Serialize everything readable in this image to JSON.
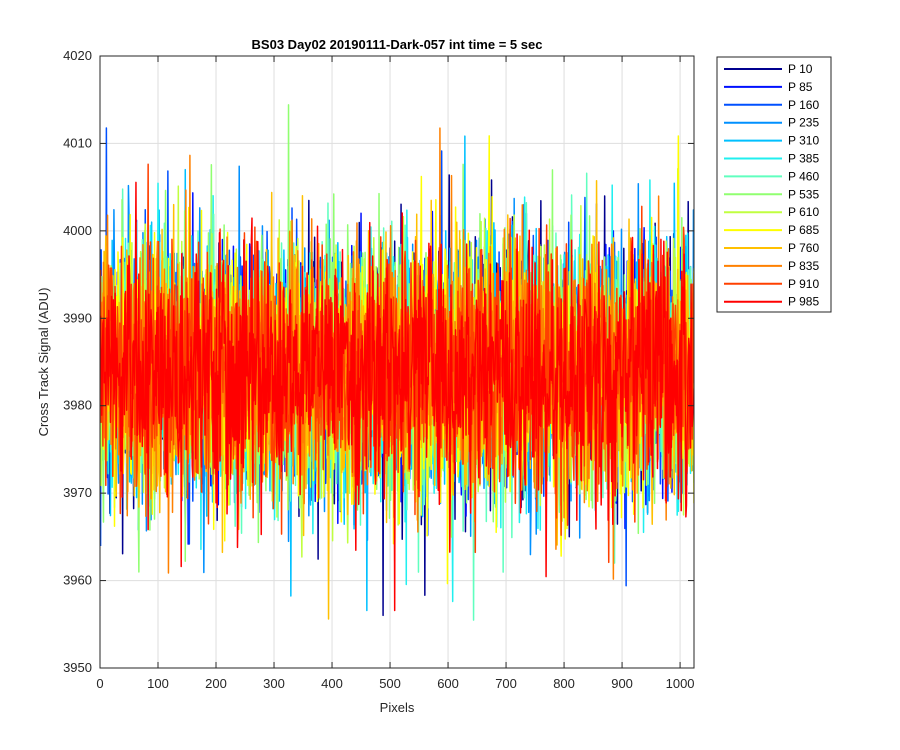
{
  "chart_data": {
    "type": "line",
    "title": "BS03 Day02 20190111-Dark-057 int time = 5 sec",
    "xlabel": "Pixels",
    "ylabel": "Cross Track Signal (ADU)",
    "xlim": [
      0,
      1024
    ],
    "ylim": [
      3950,
      4020
    ],
    "xticks": [
      0,
      100,
      200,
      300,
      400,
      500,
      600,
      700,
      800,
      900,
      1000
    ],
    "yticks": [
      3950,
      3960,
      3970,
      3980,
      3990,
      4000,
      4010,
      4020
    ],
    "grid": true,
    "legend_position": "outside-top-right",
    "x_start": 1,
    "x_end": 1024,
    "series_mean": 3984,
    "series_spread": 9,
    "series": [
      {
        "name": "P 10",
        "color": "#00008f"
      },
      {
        "name": "P 85",
        "color": "#0010ff"
      },
      {
        "name": "P 160",
        "color": "#0050ff"
      },
      {
        "name": "P 235",
        "color": "#0090ff"
      },
      {
        "name": "P 310",
        "color": "#00c0ff"
      },
      {
        "name": "P 385",
        "color": "#20efef"
      },
      {
        "name": "P 460",
        "color": "#60ffbf"
      },
      {
        "name": "P 535",
        "color": "#90ff70"
      },
      {
        "name": "P 610",
        "color": "#c0ff40"
      },
      {
        "name": "P 685",
        "color": "#ffff00"
      },
      {
        "name": "P 760",
        "color": "#ffc000"
      },
      {
        "name": "P 835",
        "color": "#ff8000"
      },
      {
        "name": "P 910",
        "color": "#ff4000"
      },
      {
        "name": "P 985",
        "color": "#ff0000"
      }
    ]
  }
}
